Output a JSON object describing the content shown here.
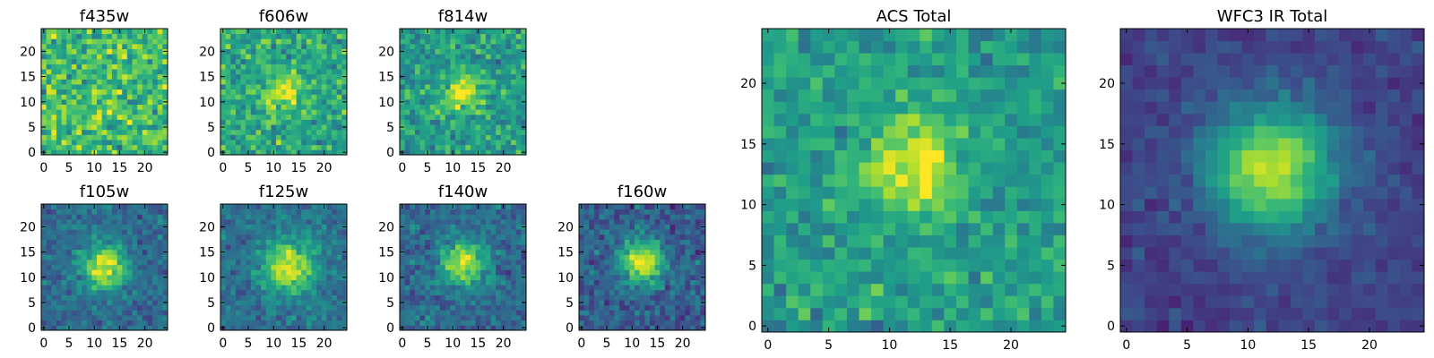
{
  "figure": {
    "background": "#ffffff"
  },
  "colormap": {
    "name": "viridis",
    "stops": [
      "#440154",
      "#482878",
      "#3e4989",
      "#31688e",
      "#26828e",
      "#1f9e89",
      "#35b779",
      "#6ece58",
      "#b5de2b",
      "#fde725"
    ]
  },
  "chart_data": [
    {
      "type": "heatmap",
      "title": "f435w",
      "grid_size": 25,
      "center": [
        12,
        12
      ],
      "sigma": 3.0,
      "peak": 0.05,
      "background": 0.68,
      "noise": 0.22,
      "seed": 11,
      "xticks": [
        0,
        5,
        10,
        15,
        20
      ],
      "yticks": [
        0,
        5,
        10,
        15,
        20
      ],
      "xlim": [
        0,
        25
      ],
      "ylim": [
        0,
        25
      ]
    },
    {
      "type": "heatmap",
      "title": "f606w",
      "grid_size": 25,
      "center": [
        12,
        12
      ],
      "sigma": 2.6,
      "peak": 0.32,
      "background": 0.6,
      "noise": 0.18,
      "seed": 23,
      "xticks": [
        0,
        5,
        10,
        15,
        20
      ],
      "yticks": [
        0,
        5,
        10,
        15,
        20
      ],
      "xlim": [
        0,
        25
      ],
      "ylim": [
        0,
        25
      ]
    },
    {
      "type": "heatmap",
      "title": "f814w",
      "grid_size": 25,
      "center": [
        12,
        12
      ],
      "sigma": 2.6,
      "peak": 0.4,
      "background": 0.55,
      "noise": 0.17,
      "seed": 37,
      "xticks": [
        0,
        5,
        10,
        15,
        20
      ],
      "yticks": [
        0,
        5,
        10,
        15,
        20
      ],
      "xlim": [
        0,
        25
      ],
      "ylim": [
        0,
        25
      ]
    },
    {
      "type": "heatmap",
      "title": "f105w",
      "grid_size": 25,
      "center": [
        12,
        12
      ],
      "sigma": 3.0,
      "peak": 0.62,
      "background": 0.35,
      "noise": 0.12,
      "seed": 41,
      "xticks": [
        0,
        5,
        10,
        15,
        20
      ],
      "yticks": [
        0,
        5,
        10,
        15,
        20
      ],
      "xlim": [
        0,
        25
      ],
      "ylim": [
        0,
        25
      ]
    },
    {
      "type": "heatmap",
      "title": "f125w",
      "grid_size": 25,
      "center": [
        13,
        12
      ],
      "sigma": 3.4,
      "peak": 0.6,
      "background": 0.38,
      "noise": 0.12,
      "seed": 53,
      "xticks": [
        0,
        5,
        10,
        15,
        20
      ],
      "yticks": [
        0,
        5,
        10,
        15,
        20
      ],
      "xlim": [
        0,
        25
      ],
      "ylim": [
        0,
        25
      ]
    },
    {
      "type": "heatmap",
      "title": "f140w",
      "grid_size": 25,
      "center": [
        12,
        13
      ],
      "sigma": 3.0,
      "peak": 0.6,
      "background": 0.35,
      "noise": 0.13,
      "seed": 67,
      "xticks": [
        0,
        5,
        10,
        15,
        20
      ],
      "yticks": [
        0,
        5,
        10,
        15,
        20
      ],
      "xlim": [
        0,
        25
      ],
      "ylim": [
        0,
        25
      ]
    },
    {
      "type": "heatmap",
      "title": "f160w",
      "grid_size": 25,
      "center": [
        12,
        13
      ],
      "sigma": 3.0,
      "peak": 0.66,
      "background": 0.3,
      "noise": 0.14,
      "seed": 79,
      "xticks": [
        0,
        5,
        10,
        15,
        20
      ],
      "yticks": [
        0,
        5,
        10,
        15,
        20
      ],
      "xlim": [
        0,
        25
      ],
      "ylim": [
        0,
        25
      ]
    },
    {
      "type": "heatmap",
      "title": "ACS Total",
      "grid_size": 25,
      "center": [
        12,
        13
      ],
      "sigma": 2.5,
      "peak": 0.45,
      "background": 0.55,
      "noise": 0.14,
      "seed": 97,
      "xticks": [
        0,
        5,
        10,
        15,
        20
      ],
      "yticks": [
        0,
        5,
        10,
        15,
        20
      ],
      "xlim": [
        0,
        25
      ],
      "ylim": [
        0,
        25
      ]
    },
    {
      "type": "heatmap",
      "title": "WFC3 IR Total",
      "grid_size": 25,
      "center": [
        12,
        13
      ],
      "sigma": 3.6,
      "peak": 0.72,
      "background": 0.2,
      "noise": 0.07,
      "seed": 113,
      "xticks": [
        0,
        5,
        10,
        15,
        20
      ],
      "yticks": [
        0,
        5,
        10,
        15,
        20
      ],
      "xlim": [
        0,
        25
      ],
      "ylim": [
        0,
        25
      ]
    }
  ]
}
